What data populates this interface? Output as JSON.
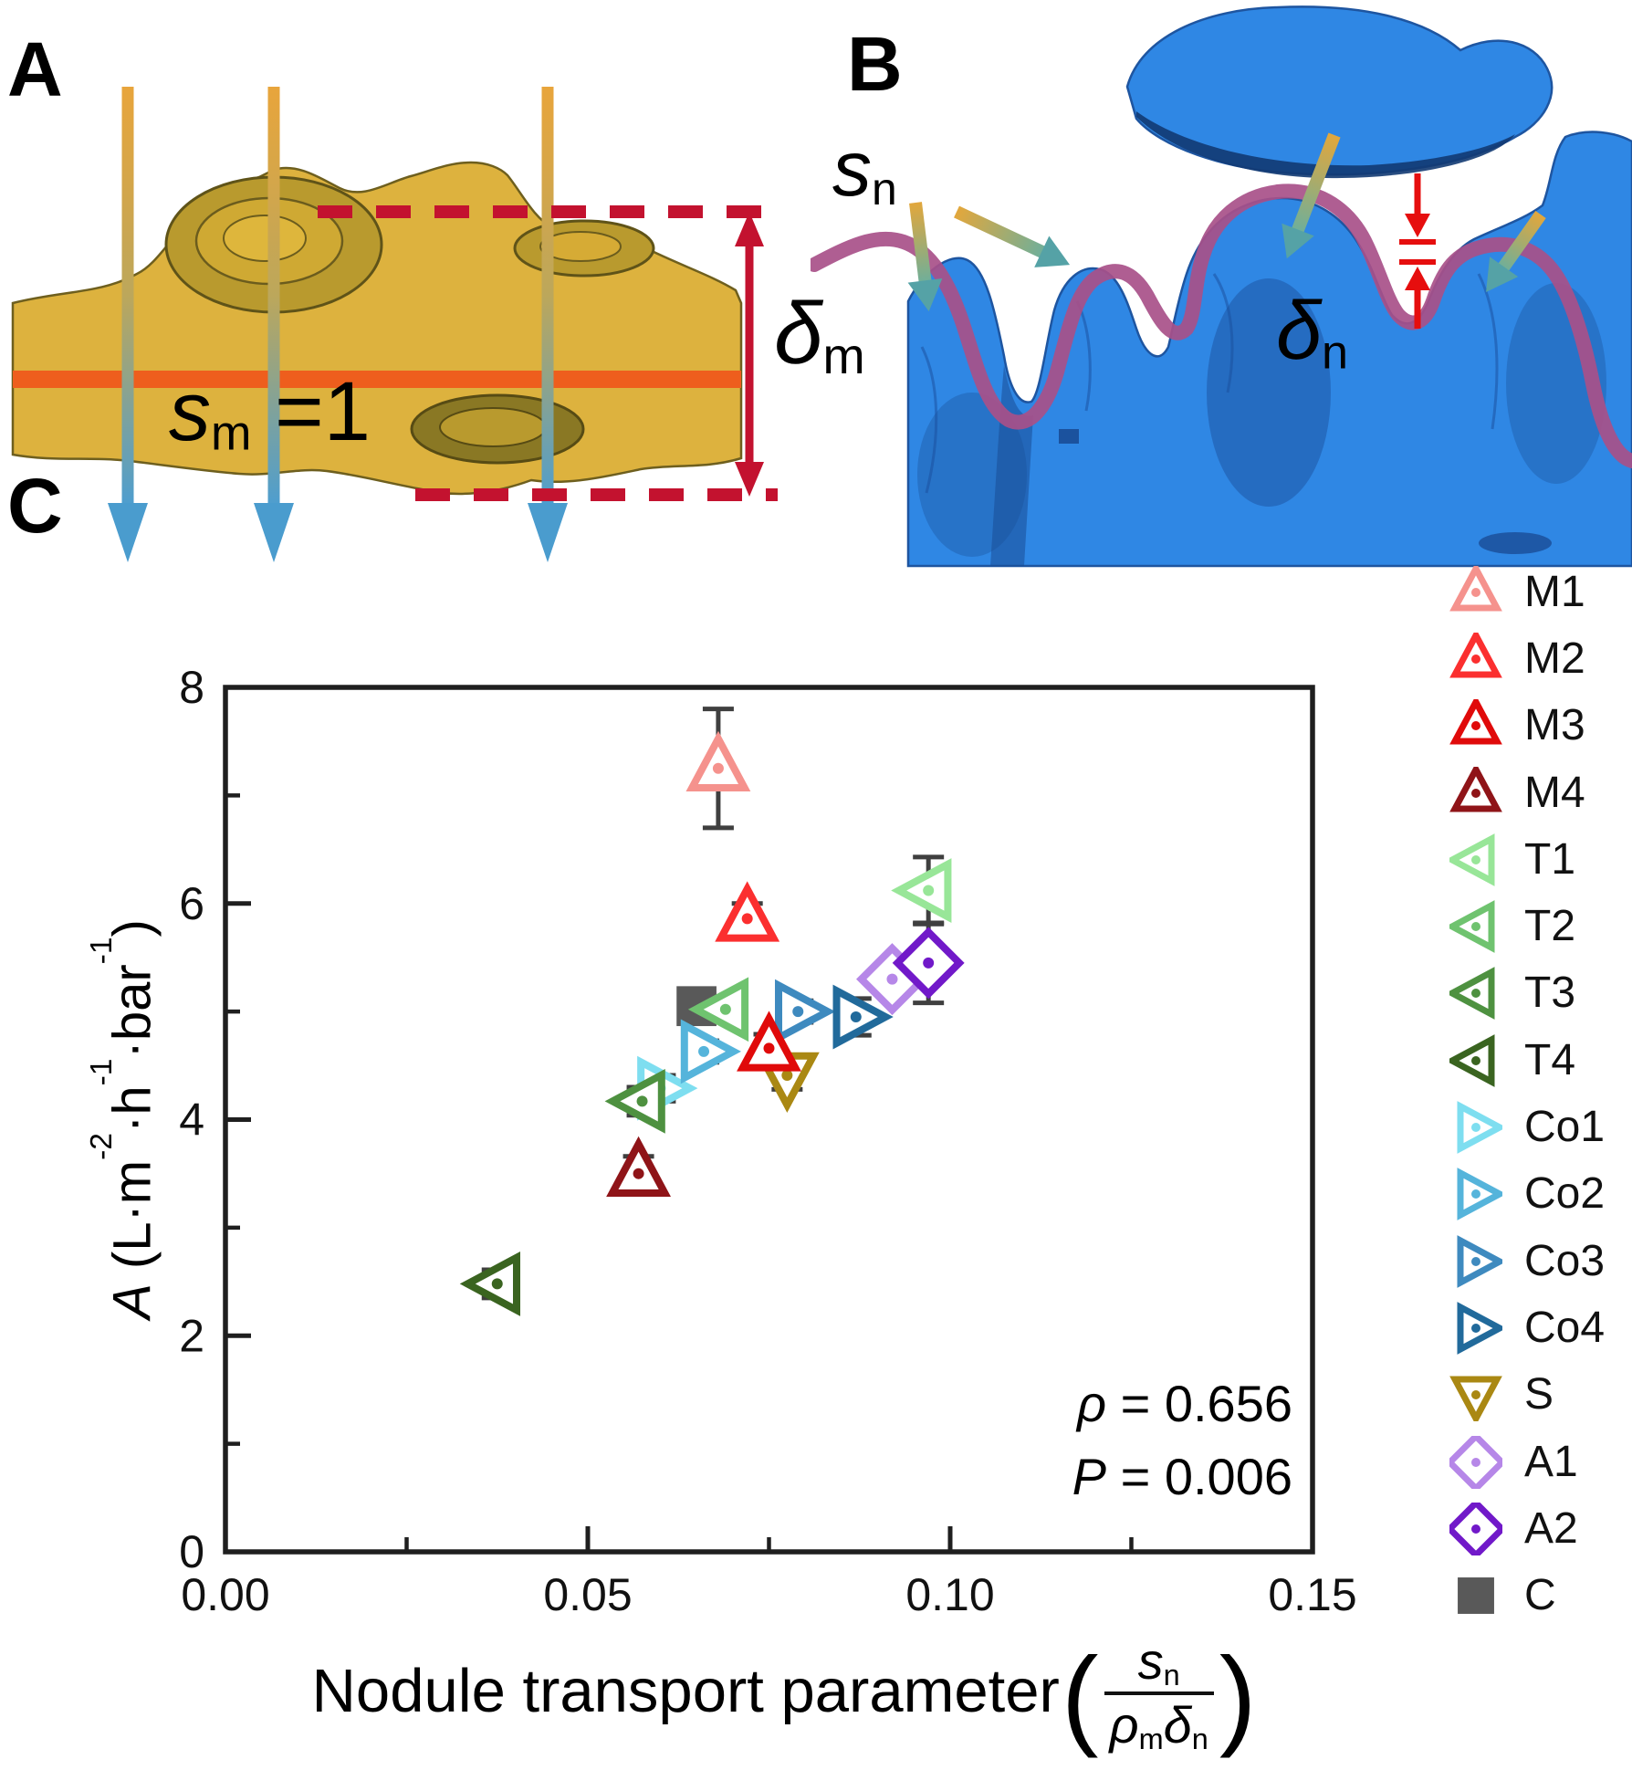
{
  "panels": {
    "a_label": "A",
    "b_label": "B",
    "c_label": "C"
  },
  "panelA": {
    "membrane_label_tokens": [
      {
        "t": "s",
        "i": 1
      },
      {
        "t": "m",
        "sub": 1
      },
      {
        "t": " =1"
      }
    ],
    "thickness_label_tokens": [
      {
        "t": "δ",
        "i": 1
      },
      {
        "t": "m",
        "sub": 1
      }
    ],
    "colors": {
      "membrane": "#DDB23E",
      "membrane_edge": "#6E5F1E",
      "texture_dark": "#8A7824",
      "texture_mid": "#C7A636",
      "active_layer_line": "#EE5E1D",
      "dashed_red": "#C3122F",
      "arrow_top": "#E8A53C",
      "arrow_mid": "#BCA75B",
      "arrow_bottom": "#4E9ECF",
      "arrow_head": "#4A9CCE"
    }
  },
  "panelB": {
    "flux_label_tokens": [
      {
        "t": "s",
        "i": 1
      },
      {
        "t": "n",
        "sub": 1
      }
    ],
    "thickness_label_tokens": [
      {
        "t": "δ",
        "i": 1
      },
      {
        "t": "n",
        "sub": 1
      }
    ],
    "colors": {
      "body": "#2F87E4",
      "body_edge": "#1E55A0",
      "shade_dark": "#123A72",
      "shade_mid": "#1A4C96",
      "surface_curve": "#A85089",
      "arrow_start": "#E2A73C",
      "arrow_end": "#6FAF9A",
      "arrow_head": "#55A2A6",
      "thickness_marker": "#E60E0E"
    }
  },
  "panelC": {
    "ylabel_tokens": [
      {
        "t": "A",
        "i": 1
      },
      {
        "t": " (L·m"
      },
      {
        "t": "-2",
        "sup": 1
      },
      {
        "t": "·h"
      },
      {
        "t": "-1",
        "sup": 1
      },
      {
        "t": "·bar"
      },
      {
        "t": "-1",
        "sup": 1
      },
      {
        "t": ")"
      }
    ],
    "xlabel_text": "Nodule transport parameter ",
    "paren_open": "(",
    "paren_close": ")",
    "frac_num_tokens": [
      {
        "t": "s",
        "i": 1
      },
      {
        "t": "n",
        "sub": 1
      }
    ],
    "frac_den_tokens": [
      {
        "t": "ρ",
        "i": 1
      },
      {
        "t": "m",
        "sub": 1
      },
      {
        "t": "δ",
        "i": 1
      },
      {
        "t": "n",
        "sub": 1
      }
    ],
    "annotation": {
      "rho_tokens": [
        {
          "t": "ρ",
          "i": 1
        },
        {
          "t": " = 0.656"
        }
      ],
      "p_tokens": [
        {
          "t": "P",
          "i": 1
        },
        {
          "t": " = 0.006"
        }
      ]
    },
    "axis_color": "#1f1f1f",
    "tick_label_color": "#111111",
    "error_bar_color": "#3f3f3f"
  },
  "chart_data": {
    "type": "scatter",
    "title": "",
    "xlabel": "Nodule transport parameter (s_n / (ρ_m·δ_n))",
    "ylabel": "A (L·m⁻²·h⁻¹·bar⁻¹)",
    "xlim": [
      0.0,
      0.15
    ],
    "ylim": [
      0,
      8
    ],
    "xticks": [
      0.0,
      0.05,
      0.1,
      0.15
    ],
    "xticks_minor": [
      0.025,
      0.075,
      0.125
    ],
    "yticks": [
      0,
      2,
      4,
      6,
      8
    ],
    "yticks_minor": [
      1,
      3,
      5,
      7
    ],
    "grid": false,
    "legend_position": "right",
    "annotation": {
      "rho": 0.656,
      "P": 0.006
    },
    "series": [
      {
        "name": "M1",
        "marker": "triangle-up",
        "color": "#F5928D",
        "x": 0.068,
        "y": 7.25,
        "yerr": 0.55
      },
      {
        "name": "M2",
        "marker": "triangle-up",
        "color": "#FB2F2F",
        "x": 0.072,
        "y": 5.86,
        "yerr": 0.14
      },
      {
        "name": "M3",
        "marker": "triangle-up",
        "color": "#E00A0A",
        "x": 0.075,
        "y": 4.66,
        "yerr": 0.13
      },
      {
        "name": "M4",
        "marker": "triangle-up",
        "color": "#8F1418",
        "x": 0.057,
        "y": 3.5,
        "yerr": 0.16
      },
      {
        "name": "T1",
        "marker": "triangle-left",
        "color": "#98E698",
        "x": 0.097,
        "y": 6.12,
        "yerr": 0.31
      },
      {
        "name": "T2",
        "marker": "triangle-left",
        "color": "#6FC36F",
        "x": 0.069,
        "y": 5.02,
        "yerr": 0.1
      },
      {
        "name": "T3",
        "marker": "triangle-left",
        "color": "#4E9140",
        "x": 0.0575,
        "y": 4.17,
        "yerr": 0.13
      },
      {
        "name": "T4",
        "marker": "triangle-left",
        "color": "#3A6420",
        "x": 0.0375,
        "y": 2.48,
        "yerr": 0.13
      },
      {
        "name": "Co1",
        "marker": "triangle-right",
        "color": "#7EDEF0",
        "x": 0.06,
        "y": 4.29,
        "yerr": 0.12
      },
      {
        "name": "Co2",
        "marker": "triangle-right",
        "color": "#55B4DB",
        "x": 0.066,
        "y": 4.63,
        "yerr": 0.1
      },
      {
        "name": "Co3",
        "marker": "triangle-right",
        "color": "#3E8ABF",
        "x": 0.079,
        "y": 5.0,
        "yerr": 0.1
      },
      {
        "name": "Co4",
        "marker": "triangle-right",
        "color": "#216A9B",
        "x": 0.087,
        "y": 4.95,
        "yerr": 0.17
      },
      {
        "name": "S",
        "marker": "triangle-down",
        "color": "#AA8813",
        "x": 0.0775,
        "y": 4.41,
        "yerr": 0.13
      },
      {
        "name": "A1",
        "marker": "diamond",
        "color": "#B687E8",
        "x": 0.092,
        "y": 5.3,
        "yerr": 0.1
      },
      {
        "name": "A2",
        "marker": "diamond",
        "color": "#7119C9",
        "x": 0.097,
        "y": 5.45,
        "yerr": 0.37
      },
      {
        "name": "C",
        "marker": "square",
        "color": "#595959",
        "x": 0.065,
        "y": 5.05,
        "yerr": 0.08
      }
    ]
  }
}
